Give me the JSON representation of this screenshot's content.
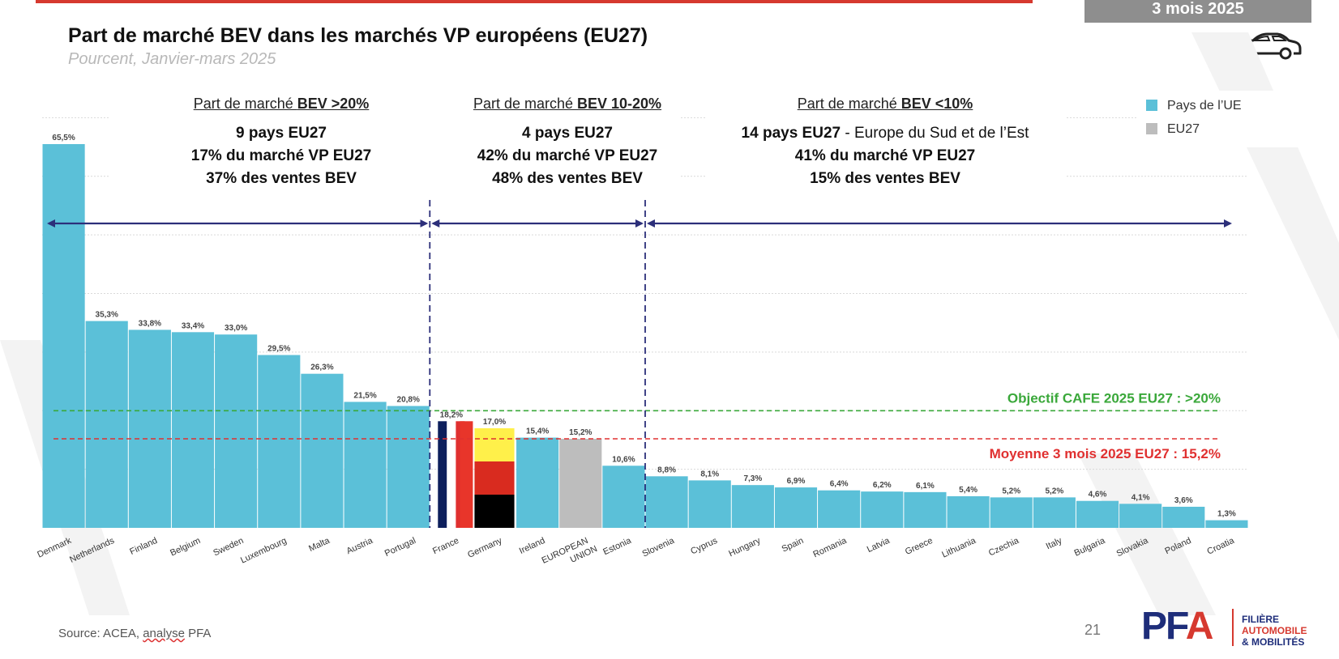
{
  "header": {
    "badge": "3 mois 2025",
    "title": "Part de marché BEV dans les marchés VP européens (EU27)",
    "subtitle": "Pourcent, Janvier-mars 2025"
  },
  "segments": [
    {
      "title_prefix": "Part de marché ",
      "title_bold": "BEV >20%",
      "lines": [
        "9 pays EU27",
        "17% du marché VP EU27",
        "37% des ventes BEV"
      ]
    },
    {
      "title_prefix": "Part de marché ",
      "title_bold": "BEV 10-20%",
      "lines": [
        "4 pays EU27",
        "42% du marché VP EU27",
        "48% des ventes BEV"
      ]
    },
    {
      "title_prefix": "Part de marché ",
      "title_bold": "BEV <10%",
      "line1_bold": "14 pays EU27",
      "line1_rest": " - Europe du Sud et de l’Est",
      "lines": [
        "41% du marché VP EU27",
        "15% des ventes BEV"
      ]
    }
  ],
  "legend": {
    "items": [
      "Pays de l’UE",
      "EU27"
    ]
  },
  "footer": {
    "source_prefix": "Source: ACEA, ",
    "source_ul": "analyse",
    "source_suffix": " PFA",
    "page": "21"
  },
  "logo": {
    "letters": "PFA",
    "lines": [
      "FILIÈRE",
      "AUTOMOBILE",
      "& MOBILITÉS"
    ]
  },
  "colors": {
    "bar": "#5bc0d8",
    "eu27": "#bdbdbd",
    "accent": "#d6392f",
    "arrow": "#2c2f7a",
    "target": "#3aa83a",
    "avg": "#e03030"
  },
  "chart_data": {
    "type": "bar",
    "categories": [
      "Denmark",
      "Netherlands",
      "Finland",
      "Belgium",
      "Sweden",
      "Luxembourg",
      "Malta",
      "Austria",
      "Portugal",
      "France",
      "Germany",
      "Ireland",
      "EUROPEAN UNION",
      "Estonia",
      "Slovenia",
      "Cyprus",
      "Hungary",
      "Spain",
      "Romania",
      "Latvia",
      "Greece",
      "Lithuania",
      "Czechia",
      "Italy",
      "Bulgaria",
      "Slovakia",
      "Poland",
      "Croatia"
    ],
    "values": [
      65.5,
      35.3,
      33.8,
      33.4,
      33.0,
      29.5,
      26.3,
      21.5,
      20.8,
      18.2,
      17.0,
      15.4,
      15.2,
      10.6,
      8.8,
      8.1,
      7.3,
      6.9,
      6.4,
      6.2,
      6.1,
      5.4,
      5.2,
      5.2,
      4.6,
      4.1,
      3.6,
      1.3
    ],
    "value_labels": [
      "65,5%",
      "35,3%",
      "33,8%",
      "33,4%",
      "33,0%",
      "29,5%",
      "26,3%",
      "21,5%",
      "20,8%",
      "18,2%",
      "17,0%",
      "15,4%",
      "15,2%",
      "10,6%",
      "8,8%",
      "8,1%",
      "7,3%",
      "6,9%",
      "6,4%",
      "6,2%",
      "6,1%",
      "5,4%",
      "5,2%",
      "5,2%",
      "4,6%",
      "4,1%",
      "3,6%",
      "1,3%"
    ],
    "highlight": {
      "EUROPEAN UNION": "EU27"
    },
    "ylim": [
      0,
      70
    ],
    "references": [
      {
        "value": 20,
        "label": "Objectif CAFE 2025 EU27 : >20%"
      },
      {
        "value": 15.2,
        "label": "Moyenne 3 mois 2025 EU27 : 15,2%"
      }
    ],
    "legend": [
      "Pays de l’UE",
      "EU27"
    ],
    "title": "Part de marché BEV dans les marchés VP européens (EU27)",
    "xlabel": "",
    "ylabel": "Pourcent"
  }
}
